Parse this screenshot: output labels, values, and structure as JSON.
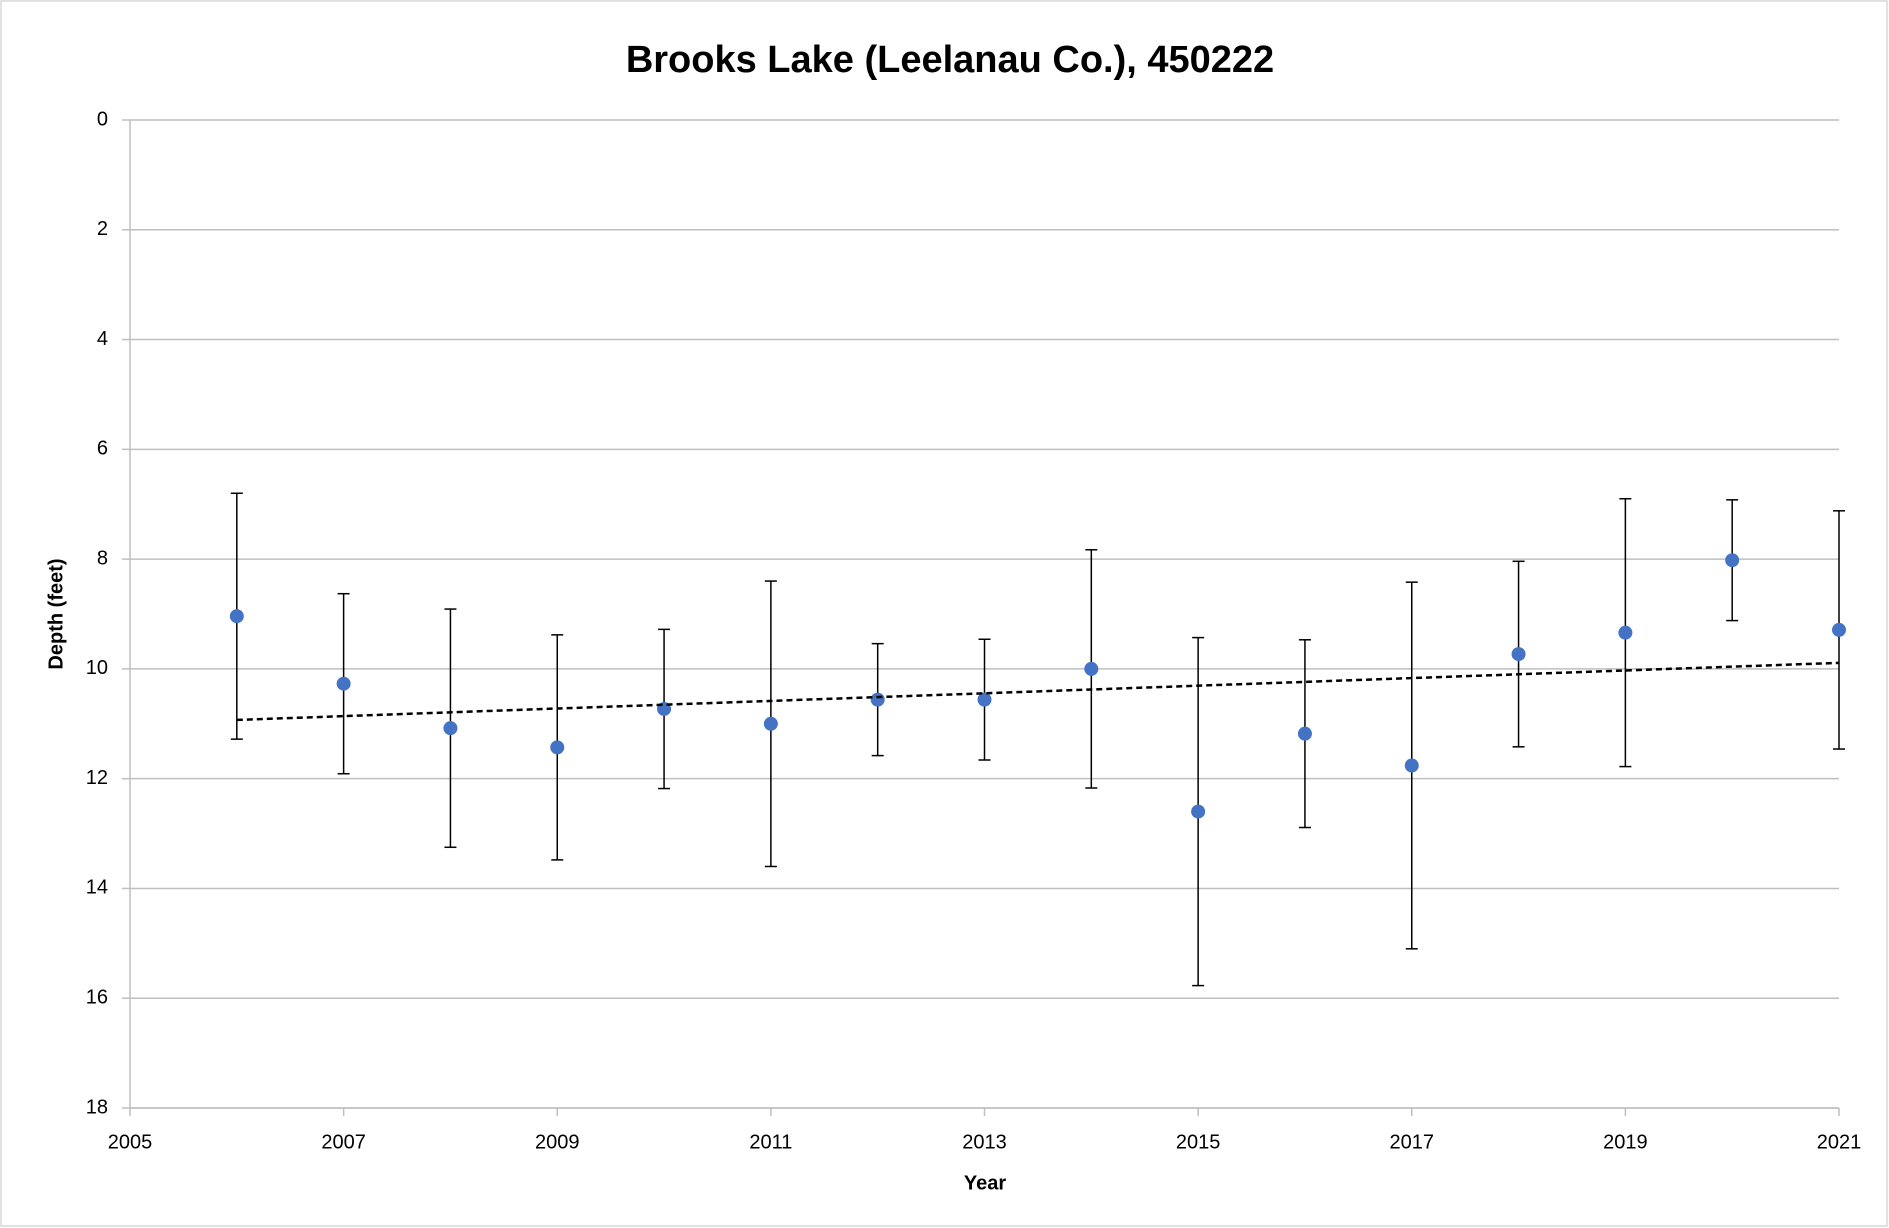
{
  "chart_data": {
    "type": "scatter",
    "title": "Brooks Lake (Leelanau Co.), 450222",
    "x_label": "Year",
    "y_label": "Depth (feet)",
    "xlim": [
      2005,
      2021
    ],
    "xticks": [
      2005,
      2007,
      2009,
      2011,
      2013,
      2015,
      2017,
      2019,
      2021
    ],
    "ylim": [
      0,
      18
    ],
    "yticks": [
      0,
      2,
      4,
      6,
      8,
      10,
      12,
      14,
      16,
      18
    ],
    "y_inverted": true,
    "grid": true,
    "series": [
      {
        "color": "#4472c4",
        "x": [
          2006,
          2007,
          2008,
          2009,
          2010,
          2011,
          2012,
          2013,
          2014,
          2015,
          2016,
          2017,
          2018,
          2019,
          2020,
          2021
        ],
        "values": [
          9.04,
          10.27,
          11.08,
          11.43,
          10.73,
          11.0,
          10.56,
          10.56,
          10.0,
          12.6,
          11.18,
          11.76,
          9.73,
          9.34,
          8.02,
          9.29
        ],
        "errors": [
          2.24,
          1.64,
          2.17,
          2.05,
          1.45,
          2.6,
          1.02,
          1.1,
          2.17,
          3.17,
          1.71,
          3.34,
          1.69,
          2.44,
          1.1,
          2.17
        ]
      }
    ],
    "trendline": {
      "x": [
        2006,
        2021
      ],
      "values": [
        10.93,
        9.89
      ],
      "color": "#000000"
    }
  }
}
